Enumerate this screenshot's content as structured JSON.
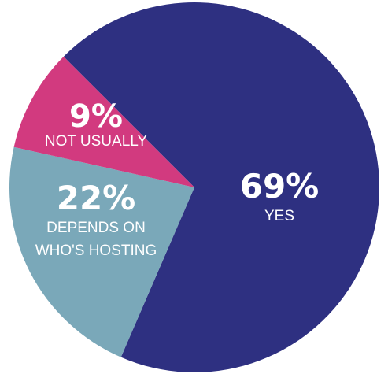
{
  "chart_data": {
    "type": "pie",
    "title": "",
    "slices": [
      {
        "value": 69,
        "percent_label": "69%",
        "label_lines": [
          "YES"
        ],
        "color": "#2E3081"
      },
      {
        "value": 22,
        "percent_label": "22%",
        "label_lines": [
          "DEPENDS ON",
          "WHO'S HOSTING"
        ],
        "color": "#7AA8B9"
      },
      {
        "value": 9,
        "percent_label": "9%",
        "label_lines": [
          "NOT USUALLY"
        ],
        "color": "#D23A7F"
      }
    ]
  }
}
